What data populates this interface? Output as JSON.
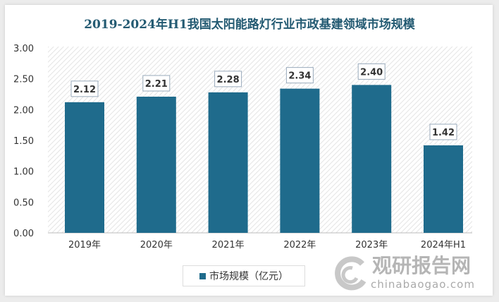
{
  "chart_data": {
    "type": "bar",
    "title": "2019-2024年H1我国太阳能路灯行业市政基建领域市场规模",
    "categories": [
      "2019年",
      "2020年",
      "2021年",
      "2022年",
      "2023年",
      "2024年H1"
    ],
    "series": [
      {
        "name": "市场规模（亿元）",
        "values": [
          2.12,
          2.21,
          2.28,
          2.34,
          2.4,
          1.42
        ]
      }
    ],
    "data_labels": [
      "2.12",
      "2.21",
      "2.28",
      "2.34",
      "2.40",
      "1.42"
    ],
    "yticks": [
      "0.00",
      "0.50",
      "1.00",
      "1.50",
      "2.00",
      "2.50",
      "3.00"
    ],
    "ylim": [
      0,
      3
    ],
    "legend": "bottom-left",
    "grid": false,
    "bar_color": "#1f6b8c",
    "title_color": "#235a72"
  },
  "watermark": {
    "cn": "观研报告网",
    "en": "chinabaogao.com"
  }
}
